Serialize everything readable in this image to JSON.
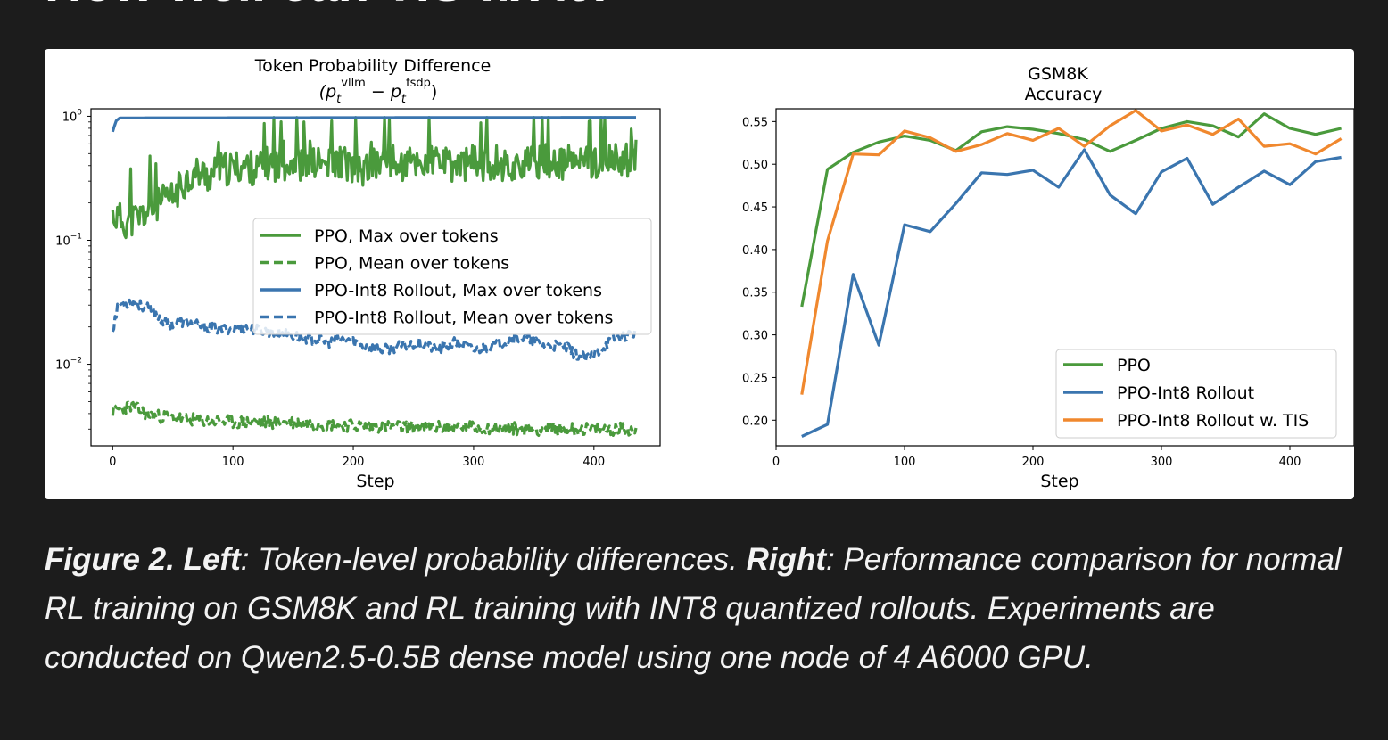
{
  "heading": "How well can TIS fix it?",
  "colors": {
    "ppo": "#4a9a3c",
    "int8": "#3a75af",
    "tis": "#f0882e"
  },
  "chart_data": [
    {
      "type": "line",
      "title": "Token Probability Difference",
      "subtitle": {
        "open": "(p",
        "sub1": "t",
        "sup1": "vllm",
        "minus": " − p",
        "sub2": "t",
        "sup2": "fsdp",
        "close": ")"
      },
      "xlabel": "Step",
      "ylabel": "",
      "yscale": "log",
      "xlim": [
        -18,
        455
      ],
      "ylim": [
        0.0022,
        1.15
      ],
      "xticks": [
        0,
        100,
        200,
        300,
        400
      ],
      "yticks": [
        {
          "value": 1,
          "base": "10",
          "exp": "0"
        },
        {
          "value": 0.1,
          "base": "10",
          "exp": "−1"
        },
        {
          "value": 0.01,
          "base": "10",
          "exp": "−2"
        }
      ],
      "legend": {
        "position": "center-right",
        "entries": [
          "PPO, Max over tokens",
          "PPO, Mean over tokens",
          "PPO-Int8 Rollout, Max over tokens",
          "PPO-Int8 Rollout, Mean over tokens"
        ]
      },
      "series": [
        {
          "name": "PPO, Max over tokens",
          "style": "solid",
          "color": "#4a9a3c",
          "x": [
            0,
            10,
            20,
            30,
            40,
            50,
            60,
            70,
            80,
            90,
            100,
            110,
            120,
            130,
            140,
            150,
            160,
            170,
            180,
            190,
            200,
            210,
            220,
            230,
            240,
            250,
            260,
            270,
            280,
            290,
            300,
            310,
            320,
            330,
            340,
            350,
            360,
            370,
            380,
            390,
            400,
            410,
            420,
            435
          ],
          "values": [
            0.16,
            0.14,
            0.15,
            0.17,
            0.2,
            0.22,
            0.3,
            0.35,
            0.33,
            0.37,
            0.38,
            0.4,
            0.37,
            0.42,
            0.4,
            0.45,
            0.38,
            0.42,
            0.4,
            0.44,
            0.38,
            0.36,
            0.42,
            0.44,
            0.39,
            0.43,
            0.41,
            0.45,
            0.39,
            0.41,
            0.43,
            0.4,
            0.44,
            0.38,
            0.42,
            0.41,
            0.45,
            0.4,
            0.43,
            0.44,
            0.42,
            0.45,
            0.43,
            0.47
          ]
        },
        {
          "name": "PPO, Mean over tokens",
          "style": "dashed",
          "color": "#4a9a3c",
          "x": [
            0,
            15,
            30,
            60,
            100,
            150,
            200,
            250,
            300,
            350,
            400,
            435
          ],
          "values": [
            0.0042,
            0.0046,
            0.0039,
            0.0036,
            0.0034,
            0.0034,
            0.0032,
            0.0031,
            0.0031,
            0.003,
            0.003,
            0.003
          ]
        },
        {
          "name": "PPO-Int8 Rollout, Max over tokens",
          "style": "solid",
          "color": "#3a75af",
          "x": [
            0,
            3,
            6,
            435
          ],
          "values": [
            0.75,
            0.92,
            0.97,
            0.98
          ]
        },
        {
          "name": "PPO-Int8 Rollout, Mean over tokens",
          "style": "dashed",
          "color": "#3a75af",
          "x": [
            0,
            5,
            15,
            30,
            45,
            60,
            75,
            90,
            105,
            120,
            135,
            150,
            165,
            180,
            195,
            210,
            225,
            240,
            255,
            270,
            285,
            300,
            315,
            330,
            345,
            360,
            375,
            385,
            395,
            405,
            415,
            425,
            435
          ],
          "values": [
            0.019,
            0.03,
            0.032,
            0.028,
            0.021,
            0.022,
            0.02,
            0.019,
            0.02,
            0.019,
            0.018,
            0.017,
            0.016,
            0.015,
            0.016,
            0.014,
            0.013,
            0.014,
            0.015,
            0.013,
            0.015,
            0.013,
            0.014,
            0.016,
            0.016,
            0.014,
            0.014,
            0.012,
            0.011,
            0.013,
            0.016,
            0.017,
            0.018
          ]
        }
      ]
    },
    {
      "type": "line",
      "title": "GSM8K",
      "subtitle": "Accuracy",
      "xlabel": "Step",
      "ylabel": "",
      "xlim": [
        0,
        450
      ],
      "ylim": [
        0.17,
        0.565
      ],
      "xticks": [
        0,
        100,
        200,
        300,
        400
      ],
      "yticks": [
        0.2,
        0.25,
        0.3,
        0.35,
        0.4,
        0.45,
        0.5,
        0.55
      ],
      "ytick_labels": [
        "0.20",
        "0.25",
        "0.30",
        "0.35",
        "0.40",
        "0.45",
        "0.50",
        "0.55"
      ],
      "legend": {
        "position": "lower-right",
        "entries": [
          "PPO",
          "PPO-Int8 Rollout",
          "PPO-Int8 Rollout w. TIS"
        ]
      },
      "x": [
        20,
        40,
        60,
        80,
        100,
        120,
        140,
        160,
        180,
        200,
        220,
        240,
        260,
        280,
        300,
        320,
        340,
        360,
        380,
        400,
        420,
        440
      ],
      "series": [
        {
          "name": "PPO",
          "color": "#4a9a3c",
          "values": [
            0.333,
            0.494,
            0.514,
            0.526,
            0.533,
            0.528,
            0.516,
            0.538,
            0.544,
            0.541,
            0.536,
            0.529,
            0.515,
            0.528,
            0.542,
            0.55,
            0.545,
            0.532,
            0.559,
            0.542,
            0.535,
            0.542
          ]
        },
        {
          "name": "PPO-Int8 Rollout",
          "color": "#3a75af",
          "values": [
            0.181,
            0.195,
            0.371,
            0.288,
            0.429,
            0.421,
            0.454,
            0.49,
            0.488,
            0.493,
            0.473,
            0.517,
            0.464,
            0.442,
            0.491,
            0.507,
            0.453,
            0.473,
            0.492,
            0.476,
            0.503,
            0.508
          ]
        },
        {
          "name": "PPO-Int8 Rollout w. TIS",
          "color": "#f0882e",
          "values": [
            0.23,
            0.41,
            0.512,
            0.511,
            0.539,
            0.531,
            0.515,
            0.523,
            0.536,
            0.528,
            0.542,
            0.521,
            0.545,
            0.563,
            0.539,
            0.546,
            0.535,
            0.553,
            0.521,
            0.524,
            0.512,
            0.53
          ]
        }
      ]
    }
  ],
  "caption": {
    "fig": "Figure 2.",
    "left_label": "Left",
    "left_text": ": Token-level probability differences.",
    "right_label": "Right",
    "right_text": ": Performance comparison for normal RL training on GSM8K and RL training with INT8 quantized rollouts. Experiments are conducted on Qwen2.5-0.5B dense model using one node of 4 A6000 GPU."
  }
}
